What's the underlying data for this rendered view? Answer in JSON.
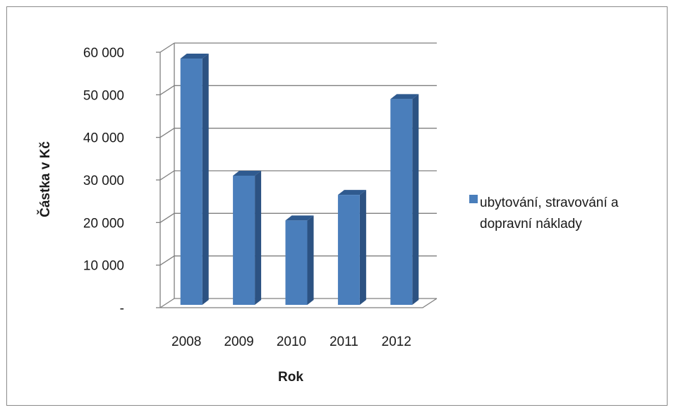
{
  "chart_data": {
    "type": "bar",
    "style": "3d-column",
    "categories": [
      "2008",
      "2009",
      "2010",
      "2011",
      "2012"
    ],
    "series": [
      {
        "name": "ubytování, stravování a dopravní náklady",
        "values": [
          58500,
          31000,
          20500,
          26500,
          49000
        ],
        "color": "#4a7ebb"
      }
    ],
    "y_tick_labels": [
      "-",
      "10 000",
      "20 000",
      "30 000",
      "40 000",
      "50 000",
      "60 000"
    ],
    "ylim": [
      0,
      60000
    ],
    "ylabel": "Částka v Kč",
    "xlabel": "Rok",
    "legend": {
      "position": "right",
      "lines": [
        "ubytování, stravování a",
        "dopravní náklady"
      ]
    },
    "grid": true,
    "colors": {
      "bar_front": "#4a7ebb",
      "bar_side": "#2c5282",
      "bar_top": "#2f5a8f",
      "grid": "#7f7f7f"
    }
  }
}
